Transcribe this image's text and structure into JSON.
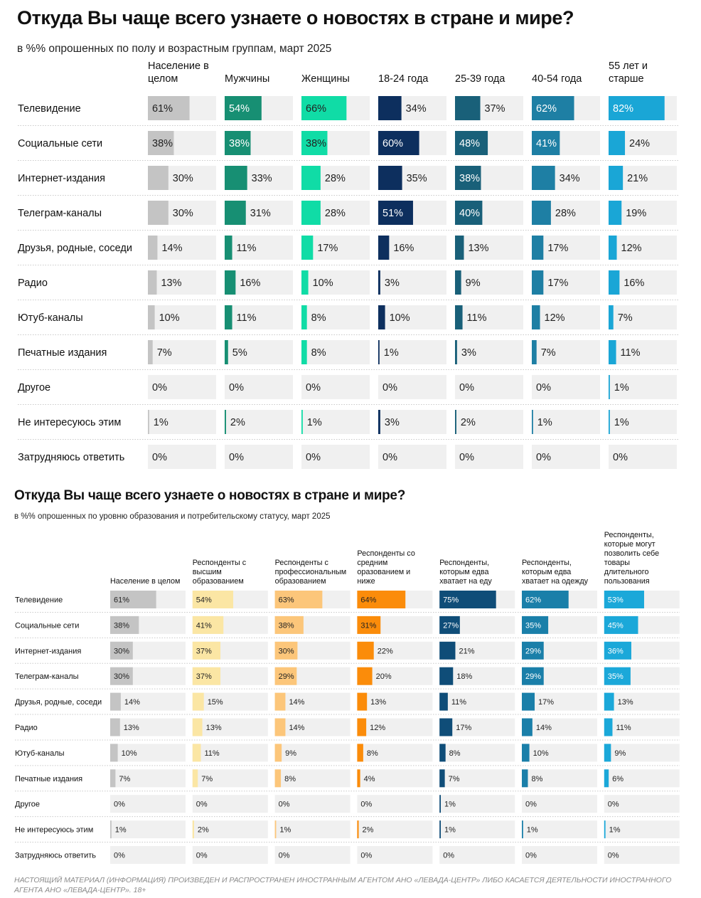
{
  "footer": "НАСТОЯЩИЙ МАТЕРИАЛ (ИНФОРМАЦИЯ) ПРОИЗВЕДЕН И РАСПРОСТРАНЕН ИНОСТРАННЫМ АГЕНТОМ АНО «ЛЕВАДА-ЦЕНТР» ЛИБО КАСАЕТСЯ ДЕЯТЕЛЬНОСТИ ИНОСТРАННОГО АГЕНТА АНО «ЛЕВАДА-ЦЕНТР». 18+",
  "chart_data": [
    {
      "type": "bar",
      "title": "Откуда Вы чаще всего узнаете о новостях в стране и мире?",
      "subtitle": "в %% опрошенных по полу и возрастным группам, март 2025",
      "unit": "%",
      "xlim": [
        0,
        100
      ],
      "categories": [
        "Телевидение",
        "Социальные сети",
        "Интернет-издания",
        "Телеграм-каналы",
        "Друзья, родные, соседи",
        "Радио",
        "Ютуб-каналы",
        "Печатные издания",
        "Другое",
        "Не интересуюсь этим",
        "Затрудняюсь ответить"
      ],
      "series": [
        {
          "name": "Население в целом",
          "color": "#c4c4c4",
          "values": [
            61,
            38,
            30,
            30,
            14,
            13,
            10,
            7,
            0,
            1,
            0
          ]
        },
        {
          "name": "Мужчины",
          "color": "#178f73",
          "values": [
            54,
            38,
            33,
            31,
            11,
            16,
            11,
            5,
            0,
            2,
            0
          ]
        },
        {
          "name": "Женщины",
          "color": "#10dca6",
          "values": [
            66,
            38,
            28,
            28,
            17,
            10,
            8,
            8,
            0,
            1,
            0
          ]
        },
        {
          "name": "18-24 года",
          "color": "#0d2f5e",
          "values": [
            34,
            60,
            35,
            51,
            16,
            3,
            10,
            1,
            0,
            3,
            0
          ]
        },
        {
          "name": "25-39 года",
          "color": "#196079",
          "values": [
            37,
            48,
            38,
            40,
            13,
            9,
            11,
            3,
            0,
            2,
            0
          ]
        },
        {
          "name": "40-54 года",
          "color": "#1e7fa4",
          "values": [
            62,
            41,
            34,
            28,
            17,
            17,
            12,
            7,
            0,
            1,
            0
          ]
        },
        {
          "name": "55 лет и старше",
          "color": "#1aa6d6",
          "values": [
            82,
            24,
            21,
            19,
            12,
            16,
            7,
            11,
            1,
            1,
            0
          ]
        }
      ]
    },
    {
      "type": "bar",
      "title": "Откуда Вы чаще всего узнаете о новостях в стране и мире?",
      "subtitle": "в %% опрошенных по уровню образования и потребительскому статусу, март 2025",
      "unit": "%",
      "xlim": [
        0,
        100
      ],
      "categories": [
        "Телевидение",
        "Социальные сети",
        "Интернет-издания",
        "Телеграм-каналы",
        "Друзья, родные, соседи",
        "Радио",
        "Ютуб-каналы",
        "Печатные издания",
        "Другое",
        "Не интересуюсь этим",
        "Затрудняюсь ответить"
      ],
      "series": [
        {
          "name": "Население в целом",
          "color": "#c4c4c4",
          "values": [
            61,
            38,
            30,
            30,
            14,
            13,
            10,
            7,
            0,
            1,
            0
          ]
        },
        {
          "name": "Респонденты с высшим образованием",
          "color": "#fbe6a4",
          "values": [
            54,
            41,
            37,
            37,
            15,
            13,
            11,
            7,
            0,
            2,
            0
          ]
        },
        {
          "name": "Респонденты с профессиональным образованием",
          "color": "#fcc67a",
          "values": [
            63,
            38,
            30,
            29,
            14,
            14,
            9,
            8,
            0,
            1,
            0
          ]
        },
        {
          "name": "Респонденты со средним оразованием и ниже",
          "color": "#fb8c0a",
          "values": [
            64,
            31,
            22,
            20,
            13,
            12,
            8,
            4,
            0,
            2,
            0
          ]
        },
        {
          "name": "Респонденты, которым едва хватает на еду",
          "color": "#0f4d78",
          "values": [
            75,
            27,
            21,
            18,
            11,
            17,
            8,
            7,
            1,
            1,
            0
          ]
        },
        {
          "name": "Респонденты, которым едва хватает на одежду",
          "color": "#1a7fa9",
          "values": [
            62,
            35,
            29,
            29,
            17,
            14,
            10,
            8,
            0,
            1,
            0
          ]
        },
        {
          "name": "Респонденты, которые могут позволить себе товары длительного пользования",
          "color": "#1ba8d9",
          "values": [
            53,
            45,
            36,
            35,
            13,
            11,
            9,
            6,
            0,
            1,
            0
          ]
        }
      ]
    }
  ]
}
